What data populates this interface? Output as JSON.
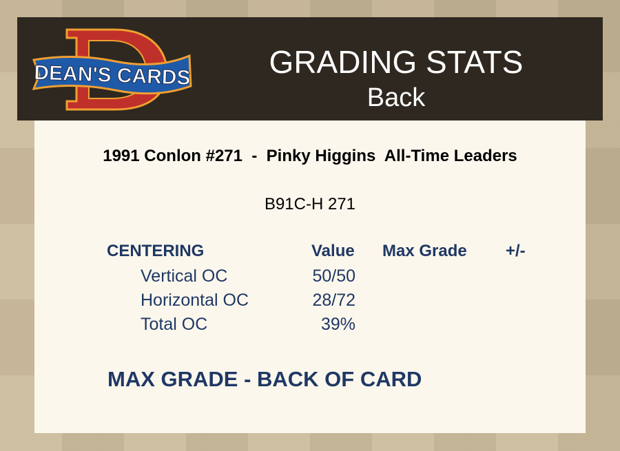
{
  "logo": {
    "text": "DEAN'S CARDS",
    "letter": "D"
  },
  "header": {
    "title": "GRADING STATS",
    "subtitle": "Back"
  },
  "card": {
    "title": "1991 Conlon #271  -  Pinky Higgins  All-Time Leaders",
    "code": "B91C-H 271"
  },
  "centering": {
    "headers": {
      "section": "CENTERING",
      "value": "Value",
      "max_grade": "Max Grade",
      "plus_minus": "+/-"
    },
    "rows": [
      {
        "label": "Vertical OC",
        "value": "50/50"
      },
      {
        "label": "Horizontal OC",
        "value": "28/72"
      },
      {
        "label": "Total OC",
        "value": "39%"
      }
    ]
  },
  "footer": {
    "max_grade_label": "MAX GRADE - BACK OF CARD"
  },
  "colors": {
    "header_bg": "#2e2821",
    "panel_bg": "#fcf7ed",
    "navy": "#1f3864",
    "background": "#c8b896"
  }
}
